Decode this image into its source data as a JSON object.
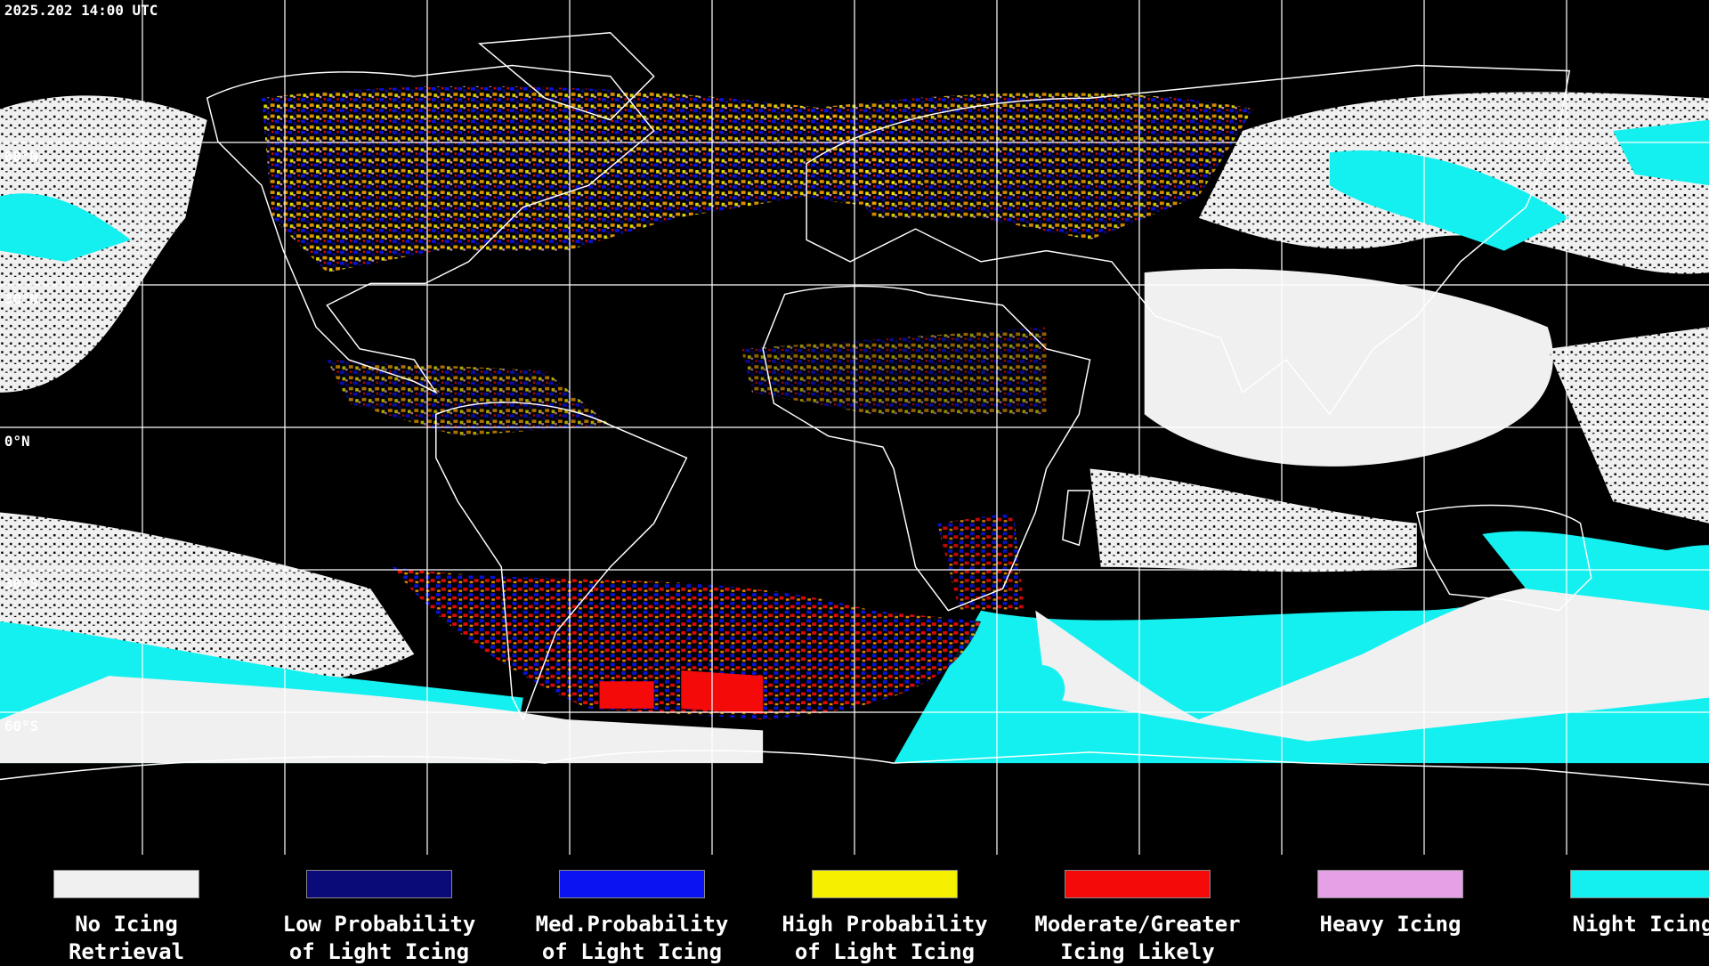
{
  "timestamp": "2025.202 14:00 UTC",
  "lat_labels": [
    "60°N",
    "30°N",
    "0°N",
    "30°S",
    "60°S"
  ],
  "legend": [
    {
      "lines": [
        "No Icing",
        "Retrieval"
      ],
      "color": "#f0f0f0"
    },
    {
      "lines": [
        "Low Probability",
        "of Light Icing"
      ],
      "color": "#0a0a78"
    },
    {
      "lines": [
        "Med.Probability",
        "of Light Icing"
      ],
      "color": "#0a14f0"
    },
    {
      "lines": [
        "High Probability",
        "of Light Icing"
      ],
      "color": "#f5f000"
    },
    {
      "lines": [
        "Moderate/Greater",
        "Icing Likely"
      ],
      "color": "#f50a0a"
    },
    {
      "lines": [
        "Heavy Icing"
      ],
      "color": "#e6a0e6"
    },
    {
      "lines": [
        "Night Icing"
      ],
      "color": "#14f0f0"
    }
  ]
}
